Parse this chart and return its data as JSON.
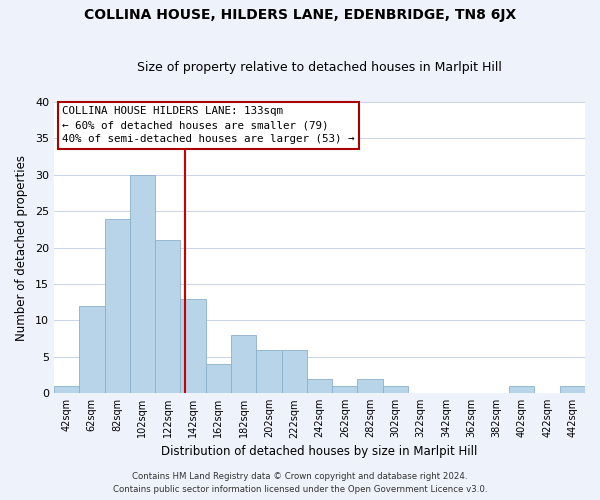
{
  "title": "COLLINA HOUSE, HILDERS LANE, EDENBRIDGE, TN8 6JX",
  "subtitle": "Size of property relative to detached houses in Marlpit Hill",
  "xlabel": "Distribution of detached houses by size in Marlpit Hill",
  "ylabel": "Number of detached properties",
  "bar_labels": [
    "42sqm",
    "62sqm",
    "82sqm",
    "102sqm",
    "122sqm",
    "142sqm",
    "162sqm",
    "182sqm",
    "202sqm",
    "222sqm",
    "242sqm",
    "262sqm",
    "282sqm",
    "302sqm",
    "322sqm",
    "342sqm",
    "362sqm",
    "382sqm",
    "402sqm",
    "422sqm",
    "442sqm"
  ],
  "bar_values": [
    1,
    12,
    24,
    30,
    21,
    13,
    4,
    8,
    6,
    6,
    2,
    1,
    2,
    1,
    0,
    0,
    0,
    0,
    1,
    0,
    1
  ],
  "bar_color": "#b8d4e8",
  "bar_edge_color": "#8ab0cc",
  "vline_color": "#cc0000",
  "annotation_title": "COLLINA HOUSE HILDERS LANE: 133sqm",
  "annotation_line1": "← 60% of detached houses are smaller (79)",
  "annotation_line2": "40% of semi-detached houses are larger (53) →",
  "ylim": [
    0,
    40
  ],
  "yticks": [
    0,
    5,
    10,
    15,
    20,
    25,
    30,
    35,
    40
  ],
  "footer1": "Contains HM Land Registry data © Crown copyright and database right 2024.",
  "footer2": "Contains public sector information licensed under the Open Government Licence v3.0.",
  "bg_color": "#eef2fb",
  "plot_bg_color": "#ffffff",
  "grid_color": "#c8d4e8",
  "vline_pos": 4.67
}
